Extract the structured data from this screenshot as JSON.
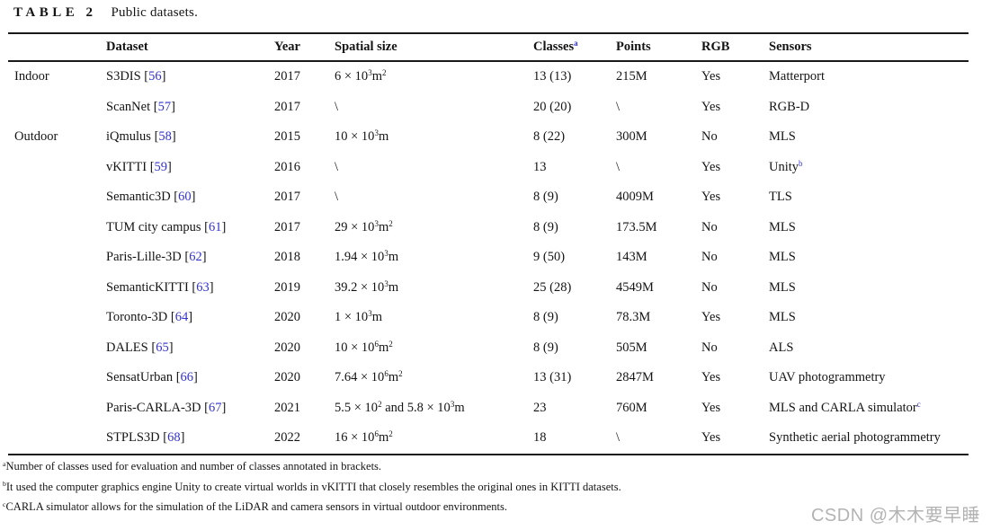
{
  "title": {
    "label": "TABLE 2",
    "caption": "Public datasets."
  },
  "colors": {
    "citation_blue": "#3232cd",
    "rule_black": "#1a1a1a",
    "watermark_gray": "#b3b3b3"
  },
  "table": {
    "headers": [
      "",
      "Dataset",
      "Year",
      "Spatial size",
      "Classes^[a]",
      "Points",
      "RGB",
      "Sensors"
    ],
    "rows": [
      {
        "group": "Indoor",
        "name": "S3DIS",
        "ref": "56",
        "year": "2017",
        "spatial": "6 × 10^{3}m^{2}",
        "classes": "13 (13)",
        "points": "215M",
        "rgb": "Yes",
        "sensors": "Matterport"
      },
      {
        "group": "",
        "name": "ScanNet",
        "ref": "57",
        "year": "2017",
        "spatial": "\\",
        "classes": "20 (20)",
        "points": "\\",
        "rgb": "Yes",
        "sensors": "RGB-D"
      },
      {
        "group": "Outdoor",
        "name": "iQmulus",
        "ref": "58",
        "year": "2015",
        "spatial": "10 × 10^{3}m",
        "classes": "8 (22)",
        "points": "300M",
        "rgb": "No",
        "sensors": "MLS"
      },
      {
        "group": "",
        "name": "vKITTI",
        "ref": "59",
        "year": "2016",
        "spatial": "\\",
        "classes": "13",
        "points": "\\",
        "rgb": "Yes",
        "sensors": "Unity^[b]"
      },
      {
        "group": "",
        "name": "Semantic3D",
        "ref": "60",
        "year": "2017",
        "spatial": "\\",
        "classes": "8 (9)",
        "points": "4009M",
        "rgb": "Yes",
        "sensors": "TLS"
      },
      {
        "group": "",
        "name": "TUM city campus",
        "ref": "61",
        "year": "2017",
        "spatial": "29 × 10^{3}m^{2}",
        "classes": "8 (9)",
        "points": "173.5M",
        "rgb": "No",
        "sensors": "MLS"
      },
      {
        "group": "",
        "name": "Paris-Lille-3D",
        "ref": "62",
        "year": "2018",
        "spatial": "1.94 × 10^{3}m",
        "classes": "9 (50)",
        "points": "143M",
        "rgb": "No",
        "sensors": "MLS"
      },
      {
        "group": "",
        "name": "SemanticKITTI",
        "ref": "63",
        "year": "2019",
        "spatial": "39.2 × 10^{3}m",
        "classes": "25 (28)",
        "points": "4549M",
        "rgb": "No",
        "sensors": "MLS"
      },
      {
        "group": "",
        "name": "Toronto-3D",
        "ref": "64",
        "year": "2020",
        "spatial": "1 × 10^{3}m",
        "classes": "8 (9)",
        "points": "78.3M",
        "rgb": "Yes",
        "sensors": "MLS"
      },
      {
        "group": "",
        "name": "DALES",
        "ref": "65",
        "year": "2020",
        "spatial": "10 × 10^{6}m^{2}",
        "classes": "8 (9)",
        "points": "505M",
        "rgb": "No",
        "sensors": "ALS"
      },
      {
        "group": "",
        "name": "SensatUrban",
        "ref": "66",
        "year": "2020",
        "spatial": "7.64 × 10^{6}m^{2}",
        "classes": "13 (31)",
        "points": "2847M",
        "rgb": "Yes",
        "sensors": "UAV photogrammetry"
      },
      {
        "group": "",
        "name": "Paris-CARLA-3D",
        "ref": "67",
        "year": "2021",
        "spatial": "5.5 × 10^{2} and 5.8 × 10^{3}m",
        "classes": "23",
        "points": "760M",
        "rgb": "Yes",
        "sensors": "MLS and CARLA simulator^[c]"
      },
      {
        "group": "",
        "name": "STPLS3D",
        "ref": "68",
        "year": "2022",
        "spatial": "16 × 10^{6}m^{2}",
        "classes": "18",
        "points": "\\",
        "rgb": "Yes",
        "sensors": "Synthetic aerial photogrammetry"
      }
    ]
  },
  "footnotes": [
    "^{a}Number of classes used for evaluation and number of classes annotated in brackets.",
    "^{b}It used the computer graphics engine Unity to create virtual worlds in vKITTI that closely resembles the original ones in KITTI datasets.",
    "^{c}CARLA simulator allows for the simulation of the LiDAR and camera sensors in virtual outdoor environments."
  ],
  "watermark": {
    "text": "CSDN @木木要早睡"
  }
}
